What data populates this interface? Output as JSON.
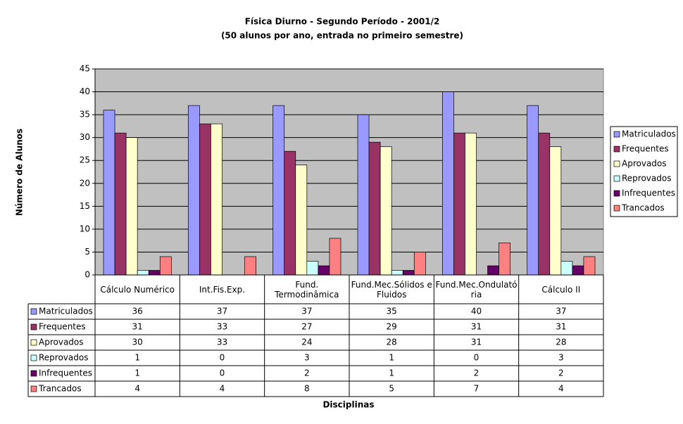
{
  "chart_data": {
    "type": "bar",
    "title": "Física Diurno - Segundo Período - 2001/2",
    "subtitle": "(50 alunos por ano, entrada no primeiro semestre)",
    "y_label": "Número de Alunos",
    "x_label": "Disciplinas",
    "categories": [
      "Cálculo Numérico",
      "Int.Fis.Exp.",
      "Fund. Termodinâmica",
      "Fund.Mec.Sólidos e Fluidos",
      "Fund.Mec.Ondulatória",
      "Cálculo II"
    ],
    "series": [
      {
        "name": "Matriculados",
        "color": "#9999ff",
        "values": [
          36,
          37,
          37,
          35,
          40,
          37
        ]
      },
      {
        "name": "Frequentes",
        "color": "#993366",
        "values": [
          31,
          33,
          27,
          29,
          31,
          31
        ]
      },
      {
        "name": "Aprovados",
        "color": "#ffffcc",
        "values": [
          30,
          33,
          24,
          28,
          31,
          28
        ]
      },
      {
        "name": "Reprovados",
        "color": "#ccffff",
        "values": [
          1,
          0,
          3,
          1,
          0,
          3
        ]
      },
      {
        "name": "Infrequentes",
        "color": "#660066",
        "values": [
          1,
          0,
          2,
          1,
          2,
          2
        ]
      },
      {
        "name": "Trancados",
        "color": "#ff8080",
        "values": [
          4,
          4,
          8,
          5,
          7,
          4
        ]
      }
    ],
    "ylim": [
      0,
      45
    ],
    "yticks": [
      0,
      5,
      10,
      15,
      20,
      25,
      30,
      35,
      40,
      45
    ],
    "grid": true,
    "legend": "right",
    "data_table": true
  }
}
